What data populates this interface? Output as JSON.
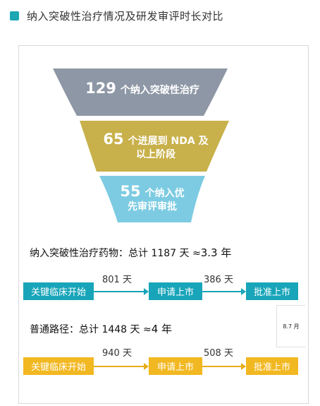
{
  "header": {
    "title": "纳入突破性治疗情况及研发审评时长对比"
  },
  "funnel": {
    "stages": [
      {
        "number": "129",
        "text_line1": "个纳入突破性治疗",
        "text_line2": "",
        "color": "#8d97a5"
      },
      {
        "number": "65",
        "text_line1": "个进展到 NDA 及",
        "text_line2": "以上阶段",
        "color": "#c8b04a"
      },
      {
        "number": "55",
        "text_line1": "个纳入优",
        "text_line2": "先审评审批",
        "color": "#7ccbe2"
      }
    ]
  },
  "paths": {
    "breakthrough": {
      "label_prefix": "纳入突破性治疗药物：总计 1187 天 ≈",
      "label_value": "3.3 年",
      "steps": [
        "关键临床开始",
        "申请上市",
        "批准上市"
      ],
      "durations": [
        "801 天",
        "386 天"
      ],
      "color": "#18a5b9"
    },
    "standard": {
      "label_prefix": "普通路径：总计 1448 天 ≈",
      "label_value": "4 年",
      "steps": [
        "关键临床开始",
        "申请上市",
        "批准上市"
      ],
      "durations": [
        "940 天",
        "508 天"
      ],
      "color": "#f2b822"
    }
  },
  "side_tag": {
    "text": "8.7 月"
  }
}
